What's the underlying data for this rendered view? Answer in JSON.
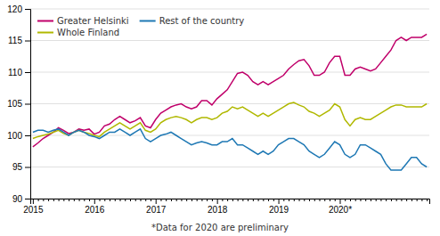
{
  "chart_data": {
    "type": "line",
    "subtitle": "*Data for 2020 are preliminary",
    "categories": [
      "2015",
      null,
      null,
      null,
      null,
      null,
      null,
      null,
      null,
      null,
      null,
      null,
      "2016",
      null,
      null,
      null,
      null,
      null,
      null,
      null,
      null,
      null,
      null,
      null,
      "2017",
      null,
      null,
      null,
      null,
      null,
      null,
      null,
      null,
      null,
      null,
      null,
      "2018",
      null,
      null,
      null,
      null,
      null,
      null,
      null,
      null,
      null,
      null,
      null,
      "2019",
      null,
      null,
      null,
      null,
      null,
      null,
      null,
      null,
      null,
      null,
      null,
      "2020*",
      null,
      null,
      null,
      null,
      null,
      null,
      null,
      null,
      null,
      null,
      null,
      null,
      null,
      null,
      null,
      null,
      null
    ],
    "series": [
      {
        "name": "Greater Helsinki",
        "color": "#c0006a",
        "values": [
          98.2,
          98.8,
          99.5,
          100.0,
          100.5,
          101.2,
          100.8,
          100.3,
          100.5,
          101.0,
          100.8,
          101.0,
          100.2,
          100.5,
          101.5,
          101.8,
          102.5,
          103.0,
          102.5,
          102.0,
          102.3,
          102.8,
          101.5,
          101.2,
          102.5,
          103.5,
          104.0,
          104.5,
          104.8,
          105.0,
          104.5,
          104.2,
          104.5,
          105.5,
          105.5,
          104.8,
          105.8,
          106.5,
          107.2,
          108.5,
          109.8,
          110.0,
          109.5,
          108.5,
          108.0,
          108.5,
          108.0,
          108.5,
          109.0,
          109.5,
          110.5,
          111.2,
          111.8,
          112.0,
          111.0,
          109.5,
          109.5,
          110.0,
          111.5,
          112.5,
          112.5,
          109.5,
          109.5,
          110.5,
          110.8,
          110.5,
          110.2,
          110.5,
          111.5,
          112.5,
          113.5,
          115.0,
          115.5,
          115.0,
          115.5,
          115.5,
          115.5,
          116.0
        ]
      },
      {
        "name": "Whole Finland",
        "color": "#b0b800",
        "values": [
          99.5,
          99.8,
          100.0,
          100.2,
          100.5,
          100.8,
          100.3,
          100.0,
          100.5,
          100.8,
          100.5,
          100.3,
          100.0,
          99.8,
          100.5,
          101.0,
          101.5,
          102.0,
          101.5,
          101.0,
          101.5,
          102.0,
          100.8,
          100.5,
          101.0,
          102.0,
          102.5,
          102.8,
          103.0,
          102.8,
          102.5,
          102.0,
          102.5,
          102.8,
          102.8,
          102.5,
          102.8,
          103.5,
          103.8,
          104.5,
          104.2,
          104.5,
          104.0,
          103.5,
          103.0,
          103.5,
          103.0,
          103.5,
          104.0,
          104.5,
          105.0,
          105.2,
          104.8,
          104.5,
          103.8,
          103.5,
          103.0,
          103.5,
          104.0,
          105.0,
          104.5,
          102.5,
          101.5,
          102.5,
          102.8,
          102.5,
          102.5,
          103.0,
          103.5,
          104.0,
          104.5,
          104.8,
          104.8,
          104.5,
          104.5,
          104.5,
          104.5,
          105.0
        ]
      },
      {
        "name": "Rest of the country",
        "color": "#1e78b4",
        "values": [
          100.5,
          100.8,
          100.8,
          100.5,
          100.8,
          101.0,
          100.5,
          100.0,
          100.5,
          100.8,
          100.5,
          100.0,
          99.8,
          99.5,
          100.0,
          100.5,
          100.5,
          101.0,
          100.5,
          100.0,
          100.5,
          101.0,
          99.5,
          99.0,
          99.5,
          100.0,
          100.2,
          100.5,
          100.0,
          99.5,
          99.0,
          98.5,
          98.8,
          99.0,
          98.8,
          98.5,
          98.5,
          99.0,
          99.0,
          99.5,
          98.5,
          98.5,
          98.0,
          97.5,
          97.0,
          97.5,
          97.0,
          97.5,
          98.5,
          99.0,
          99.5,
          99.5,
          99.0,
          98.5,
          97.5,
          97.0,
          96.5,
          97.0,
          98.0,
          99.0,
          98.5,
          97.0,
          96.5,
          97.0,
          98.5,
          98.5,
          98.0,
          97.5,
          97.0,
          95.5,
          94.5,
          94.5,
          94.5,
          95.5,
          96.5,
          96.5,
          95.5,
          95.0
        ]
      }
    ],
    "ylim": [
      90,
      120
    ],
    "yticks": [
      90,
      95,
      100,
      105,
      110,
      115,
      120
    ],
    "grid": true,
    "legend": "upper left"
  }
}
